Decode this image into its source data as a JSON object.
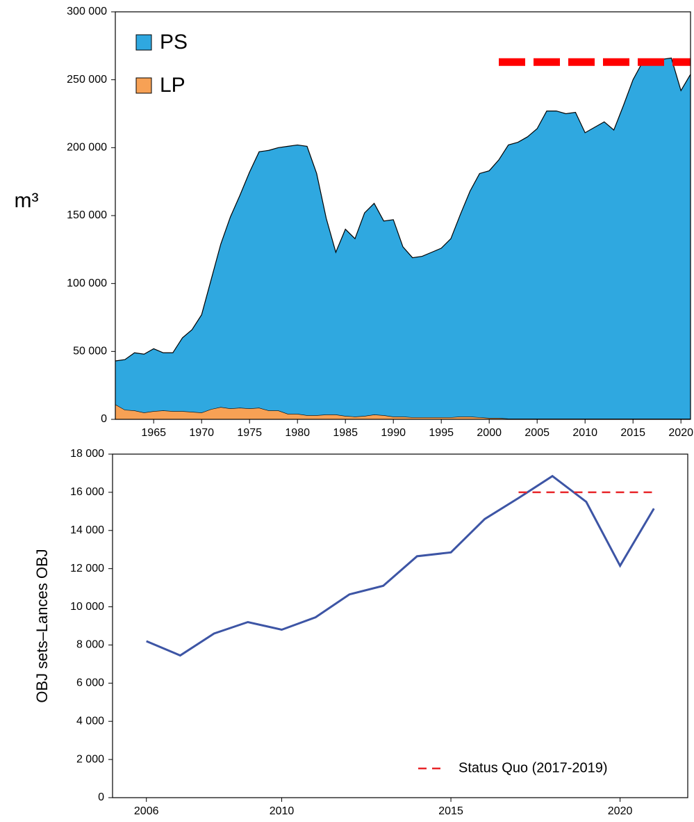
{
  "chart_data": [
    {
      "type": "area",
      "stacked": true,
      "ylabel": "m³",
      "x": [
        1961,
        1962,
        1963,
        1964,
        1965,
        1966,
        1967,
        1968,
        1969,
        1970,
        1971,
        1972,
        1973,
        1974,
        1975,
        1976,
        1977,
        1978,
        1979,
        1980,
        1981,
        1982,
        1983,
        1984,
        1985,
        1986,
        1987,
        1988,
        1989,
        1990,
        1991,
        1992,
        1993,
        1994,
        1995,
        1996,
        1997,
        1998,
        1999,
        2000,
        2001,
        2002,
        2003,
        2004,
        2005,
        2006,
        2007,
        2008,
        2009,
        2010,
        2011,
        2012,
        2013,
        2014,
        2015,
        2016,
        2017,
        2018,
        2019,
        2020,
        2021
      ],
      "series": [
        {
          "name": "PS",
          "color": "#2fa8e0",
          "values": [
            32000,
            37000,
            42500,
            43000,
            46000,
            42500,
            43000,
            54000,
            60500,
            72000,
            95500,
            120000,
            141000,
            156500,
            174000,
            188500,
            191500,
            193500,
            197000,
            198000,
            198000,
            178000,
            144500,
            119500,
            137500,
            131000,
            149500,
            155500,
            143000,
            145000,
            125000,
            117500,
            118500,
            121500,
            124500,
            131500,
            149000,
            166000,
            179500,
            182000,
            190000,
            201500,
            203500,
            207500,
            213500,
            226500,
            226500,
            224500,
            225500,
            210500,
            214500,
            218500,
            212500,
            230500,
            249500,
            262500,
            264500,
            264500,
            265500,
            241500,
            253500
          ]
        },
        {
          "name": "LP",
          "color": "#f7a155",
          "values": [
            11000,
            7000,
            6500,
            5000,
            6000,
            6500,
            6000,
            6000,
            5500,
            5000,
            7500,
            9000,
            8000,
            8500,
            8000,
            8500,
            6500,
            6500,
            4000,
            4000,
            3000,
            3000,
            3500,
            3500,
            2500,
            2000,
            2500,
            3500,
            3000,
            2000,
            2000,
            1500,
            1500,
            1500,
            1500,
            1500,
            2000,
            2000,
            1500,
            1000,
            1000,
            500,
            500,
            500,
            500,
            500,
            500,
            500,
            500,
            500,
            500,
            500,
            500,
            500,
            500,
            500,
            500,
            500,
            500,
            500,
            500
          ]
        }
      ],
      "reference_line": {
        "value": 263000,
        "from": 2001,
        "to": 2021,
        "color": "#ff0000"
      },
      "xlim": [
        1961,
        2021
      ],
      "xticks": [
        1965,
        1970,
        1975,
        1980,
        1985,
        1990,
        1995,
        2000,
        2005,
        2010,
        2015,
        2020
      ],
      "ylim": [
        0,
        300000
      ],
      "yticks": [
        0,
        {
          "value": 50000,
          "label": "50 000"
        },
        {
          "value": 100000,
          "label": "100 000"
        },
        {
          "value": 150000,
          "label": "150 000"
        },
        {
          "value": 200000,
          "label": "200 000"
        },
        {
          "value": 250000,
          "label": "250 000"
        },
        {
          "value": 300000,
          "label": "300 000"
        }
      ],
      "legend": "top-left"
    },
    {
      "type": "line",
      "ylabel": "OBJ sets–Lances OBJ",
      "x": [
        2006,
        2007,
        2008,
        2009,
        2010,
        2011,
        2012,
        2013,
        2014,
        2015,
        2016,
        2017,
        2018,
        2019,
        2020,
        2021
      ],
      "series": [
        {
          "color": "#3d55a5",
          "values": [
            8200,
            7450,
            8600,
            9200,
            8800,
            9450,
            10650,
            11100,
            12650,
            12850,
            14600,
            15700,
            16850,
            15500,
            12150,
            15150
          ]
        }
      ],
      "reference_line": {
        "name": "Status Quo (2017-2019)",
        "value": 16000,
        "from": 2017,
        "to": 2021,
        "color": "#e8262a"
      },
      "xlim": [
        2005,
        2022
      ],
      "xticks": [
        2006,
        2010,
        2015,
        2020
      ],
      "ylim": [
        0,
        18000
      ],
      "yticks": [
        0,
        {
          "value": 2000,
          "label": "2 000"
        },
        {
          "value": 4000,
          "label": "4 000"
        },
        {
          "value": 6000,
          "label": "6 000"
        },
        {
          "value": 8000,
          "label": "8 000"
        },
        {
          "value": 10000,
          "label": "10 000"
        },
        {
          "value": 12000,
          "label": "12 000"
        },
        {
          "value": 14000,
          "label": "14 000"
        },
        {
          "value": 16000,
          "label": "16 000"
        },
        {
          "value": 18000,
          "label": "18 000"
        }
      ],
      "legend": "bottom-right"
    }
  ]
}
